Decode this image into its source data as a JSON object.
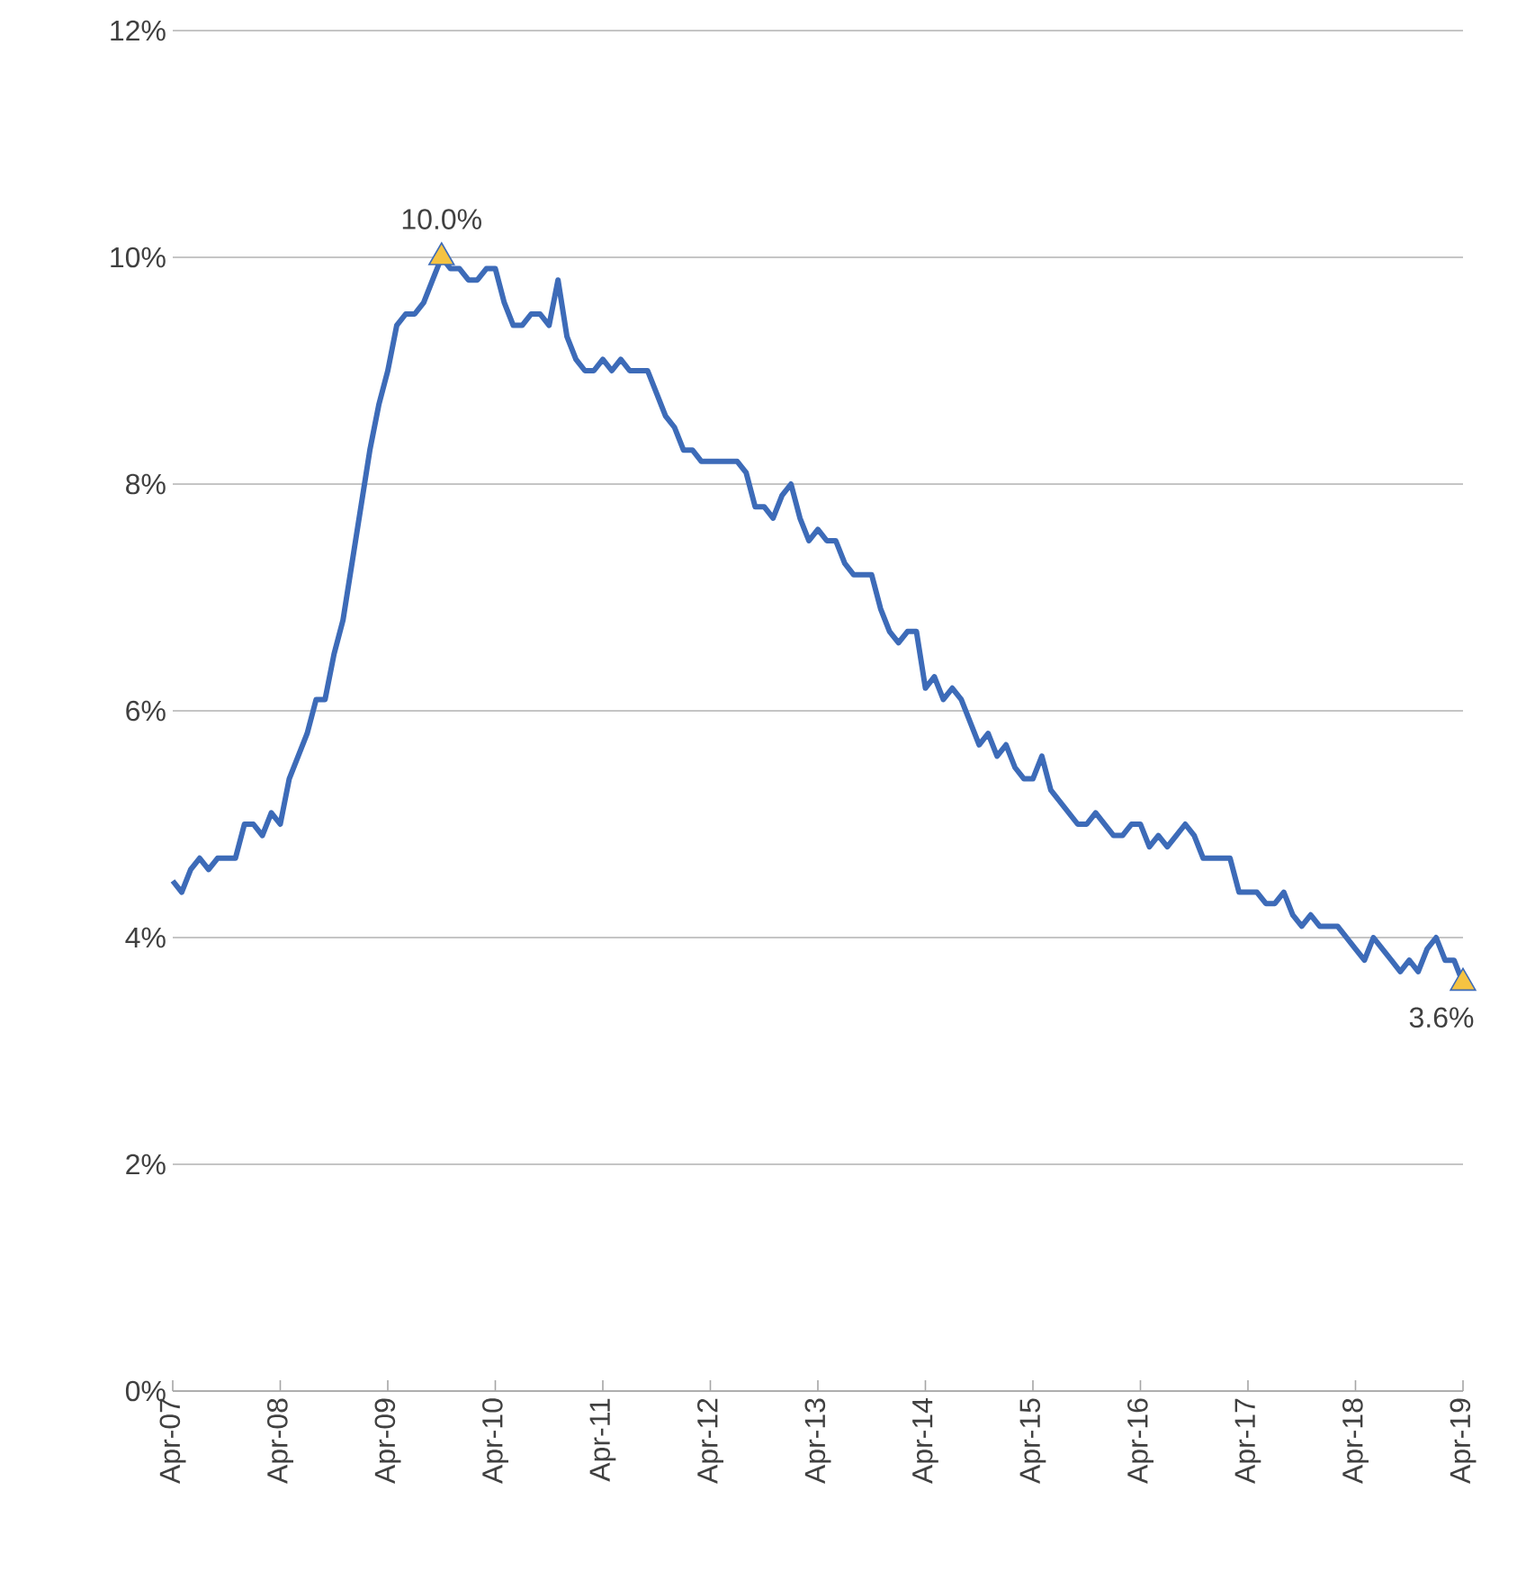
{
  "chart_data": {
    "type": "line",
    "grid": "y",
    "line_style": "solid",
    "marker": "none",
    "xlim": [
      "2007-04",
      "2019-04"
    ],
    "xticks": [
      {
        "value": "2007-04",
        "label": "Apr-07"
      },
      {
        "value": "2008-04",
        "label": "Apr-08"
      },
      {
        "value": "2009-04",
        "label": "Apr-09"
      },
      {
        "value": "2010-04",
        "label": "Apr-10"
      },
      {
        "value": "2011-04",
        "label": "Apr-11"
      },
      {
        "value": "2012-04",
        "label": "Apr-12"
      },
      {
        "value": "2013-04",
        "label": "Apr-13"
      },
      {
        "value": "2014-04",
        "label": "Apr-14"
      },
      {
        "value": "2015-04",
        "label": "Apr-15"
      },
      {
        "value": "2016-04",
        "label": "Apr-16"
      },
      {
        "value": "2017-04",
        "label": "Apr-17"
      },
      {
        "value": "2018-04",
        "label": "Apr-18"
      },
      {
        "value": "2019-04",
        "label": "Apr-19"
      }
    ],
    "ylim": [
      0,
      12
    ],
    "yticks": [
      {
        "value": 0,
        "label": "0%"
      },
      {
        "value": 2,
        "label": "2%"
      },
      {
        "value": 4,
        "label": "4%"
      },
      {
        "value": 6,
        "label": "6%"
      },
      {
        "value": 8,
        "label": "8%"
      },
      {
        "value": 10,
        "label": "10%"
      },
      {
        "value": 12,
        "label": "12%"
      }
    ],
    "series": [
      {
        "type": "line",
        "color": "#3d6bb8",
        "x": [
          "2007-04",
          "2007-05",
          "2007-06",
          "2007-07",
          "2007-08",
          "2007-09",
          "2007-10",
          "2007-11",
          "2007-12",
          "2008-01",
          "2008-02",
          "2008-03",
          "2008-04",
          "2008-05",
          "2008-06",
          "2008-07",
          "2008-08",
          "2008-09",
          "2008-10",
          "2008-11",
          "2008-12",
          "2009-01",
          "2009-02",
          "2009-03",
          "2009-04",
          "2009-05",
          "2009-06",
          "2009-07",
          "2009-08",
          "2009-09",
          "2009-10",
          "2009-11",
          "2009-12",
          "2010-01",
          "2010-02",
          "2010-03",
          "2010-04",
          "2010-05",
          "2010-06",
          "2010-07",
          "2010-08",
          "2010-09",
          "2010-10",
          "2010-11",
          "2010-12",
          "2011-01",
          "2011-02",
          "2011-03",
          "2011-04",
          "2011-05",
          "2011-06",
          "2011-07",
          "2011-08",
          "2011-09",
          "2011-10",
          "2011-11",
          "2011-12",
          "2012-01",
          "2012-02",
          "2012-03",
          "2012-04",
          "2012-05",
          "2012-06",
          "2012-07",
          "2012-08",
          "2012-09",
          "2012-10",
          "2012-11",
          "2012-12",
          "2013-01",
          "2013-02",
          "2013-03",
          "2013-04",
          "2013-05",
          "2013-06",
          "2013-07",
          "2013-08",
          "2013-09",
          "2013-10",
          "2013-11",
          "2013-12",
          "2014-01",
          "2014-02",
          "2014-03",
          "2014-04",
          "2014-05",
          "2014-06",
          "2014-07",
          "2014-08",
          "2014-09",
          "2014-10",
          "2014-11",
          "2014-12",
          "2015-01",
          "2015-02",
          "2015-03",
          "2015-04",
          "2015-05",
          "2015-06",
          "2015-07",
          "2015-08",
          "2015-09",
          "2015-10",
          "2015-11",
          "2015-12",
          "2016-01",
          "2016-02",
          "2016-03",
          "2016-04",
          "2016-05",
          "2016-06",
          "2016-07",
          "2016-08",
          "2016-09",
          "2016-10",
          "2016-11",
          "2016-12",
          "2017-01",
          "2017-02",
          "2017-03",
          "2017-04",
          "2017-05",
          "2017-06",
          "2017-07",
          "2017-08",
          "2017-09",
          "2017-10",
          "2017-11",
          "2017-12",
          "2018-01",
          "2018-02",
          "2018-03",
          "2018-04",
          "2018-05",
          "2018-06",
          "2018-07",
          "2018-08",
          "2018-09",
          "2018-10",
          "2018-11",
          "2018-12",
          "2019-01",
          "2019-02",
          "2019-03",
          "2019-04"
        ],
        "values": [
          4.5,
          4.4,
          4.6,
          4.7,
          4.6,
          4.7,
          4.7,
          4.7,
          5.0,
          5.0,
          4.9,
          5.1,
          5.0,
          5.4,
          5.6,
          5.8,
          6.1,
          6.1,
          6.5,
          6.8,
          7.3,
          7.8,
          8.3,
          8.7,
          9.0,
          9.4,
          9.5,
          9.5,
          9.6,
          9.8,
          10.0,
          9.9,
          9.9,
          9.8,
          9.8,
          9.9,
          9.9,
          9.6,
          9.4,
          9.4,
          9.5,
          9.5,
          9.4,
          9.8,
          9.3,
          9.1,
          9.0,
          9.0,
          9.1,
          9.0,
          9.1,
          9.0,
          9.0,
          9.0,
          8.8,
          8.6,
          8.5,
          8.3,
          8.3,
          8.2,
          8.2,
          8.2,
          8.2,
          8.2,
          8.1,
          7.8,
          7.8,
          7.7,
          7.9,
          8.0,
          7.7,
          7.5,
          7.6,
          7.5,
          7.5,
          7.3,
          7.2,
          7.2,
          7.2,
          6.9,
          6.7,
          6.6,
          6.7,
          6.7,
          6.2,
          6.3,
          6.1,
          6.2,
          6.1,
          5.9,
          5.7,
          5.8,
          5.6,
          5.7,
          5.5,
          5.4,
          5.4,
          5.6,
          5.3,
          5.2,
          5.1,
          5.0,
          5.0,
          5.1,
          5.0,
          4.9,
          4.9,
          5.0,
          5.0,
          4.8,
          4.9,
          4.8,
          4.9,
          5.0,
          4.9,
          4.7,
          4.7,
          4.7,
          4.7,
          4.4,
          4.4,
          4.4,
          4.3,
          4.3,
          4.4,
          4.2,
          4.1,
          4.2,
          4.1,
          4.1,
          4.1,
          4.0,
          3.9,
          3.8,
          4.0,
          3.9,
          3.8,
          3.7,
          3.8,
          3.7,
          3.9,
          4.0,
          3.8,
          3.8,
          3.6
        ]
      },
      {
        "type": "scatter",
        "color": "#f5c342",
        "marker": "triangle",
        "x": [
          "2009-10",
          "2019-04"
        ],
        "values": [
          10.0,
          3.6
        ]
      }
    ],
    "annotations": [
      {
        "text": "10.0%",
        "x": "2009-10",
        "y": 10.0
      },
      {
        "text": "3.6%",
        "x": "2019-04",
        "y": 3.6
      }
    ]
  }
}
